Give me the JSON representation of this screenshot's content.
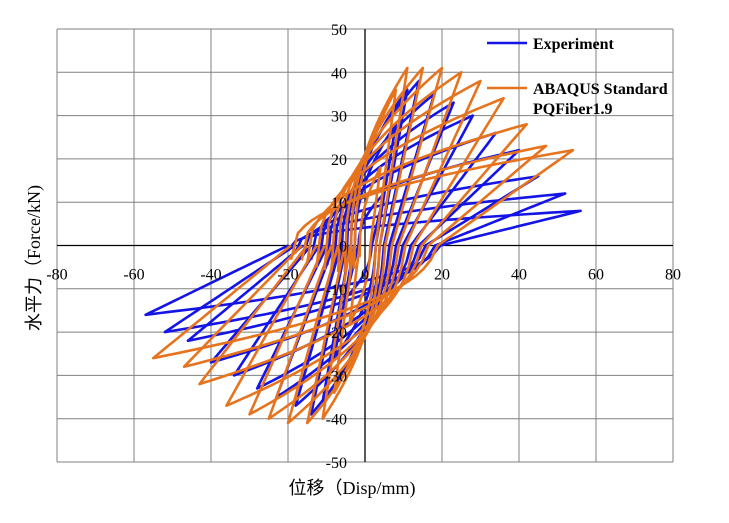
{
  "chart_data": {
    "type": "line",
    "xlabel": "位移（Disp/mm)",
    "ylabel": "水平力（Force/kN)",
    "xlim": [
      -80,
      80
    ],
    "ylim": [
      -50,
      50
    ],
    "xticks": [
      "-80",
      "-60",
      "-40",
      "-20",
      "0",
      "20",
      "40",
      "60",
      "80"
    ],
    "yticks": [
      "50",
      "40",
      "30",
      "20",
      "10",
      "0",
      "-10",
      "-20",
      "-30",
      "-40",
      "-50"
    ],
    "grid": true,
    "legend_position": "top-right",
    "colors": {
      "Experiment": "#1414e6",
      "ABAQUS Standard": "#e6731e"
    },
    "series": [
      {
        "name": "Experiment",
        "loops": [
          {
            "dmax": 5,
            "fmax": 12,
            "dmin": -5,
            "fmin": -12
          },
          {
            "dmax": 8,
            "fmax": 28,
            "dmin": -8,
            "fmin": -26
          },
          {
            "dmax": 11,
            "fmax": 36,
            "dmin": -11,
            "fmin": -36
          },
          {
            "dmax": 14,
            "fmax": 38,
            "dmin": -14,
            "fmin": -39
          },
          {
            "dmax": 18,
            "fmax": 35,
            "dmin": -18,
            "fmin": -37
          },
          {
            "dmax": 23,
            "fmax": 33,
            "dmin": -23,
            "fmin": -35
          },
          {
            "dmax": 28,
            "fmax": 30,
            "dmin": -28,
            "fmin": -33
          },
          {
            "dmax": 34,
            "fmax": 26,
            "dmin": -34,
            "fmin": -30
          },
          {
            "dmax": 40,
            "fmax": 22,
            "dmin": -40,
            "fmin": -27
          },
          {
            "dmax": 45,
            "fmax": 16,
            "dmin": -46,
            "fmin": -22
          },
          {
            "dmax": 52,
            "fmax": 12,
            "dmin": -52,
            "fmin": -20
          },
          {
            "dmax": 56,
            "fmax": 8,
            "dmin": -57,
            "fmin": -16
          }
        ]
      },
      {
        "name": "ABAQUS Standard",
        "loops": [
          {
            "dmax": 4,
            "fmax": 18,
            "dmin": -4,
            "fmin": -18
          },
          {
            "dmax": 8,
            "fmax": 36,
            "dmin": -8,
            "fmin": -34
          },
          {
            "dmax": 11,
            "fmax": 41,
            "dmin": -11,
            "fmin": -40
          },
          {
            "dmax": 15,
            "fmax": 41,
            "dmin": -15,
            "fmin": -41
          },
          {
            "dmax": 20,
            "fmax": 41,
            "dmin": -20,
            "fmin": -41
          },
          {
            "dmax": 25,
            "fmax": 40,
            "dmin": -25,
            "fmin": -40
          },
          {
            "dmax": 30,
            "fmax": 38,
            "dmin": -30,
            "fmin": -39
          },
          {
            "dmax": 36,
            "fmax": 34,
            "dmin": -36,
            "fmin": -37
          },
          {
            "dmax": 42,
            "fmax": 28,
            "dmin": -43,
            "fmin": -32
          },
          {
            "dmax": 47,
            "fmax": 23,
            "dmin": -47,
            "fmin": -28
          },
          {
            "dmax": 54,
            "fmax": 22,
            "dmin": -55,
            "fmin": -26
          }
        ]
      }
    ],
    "legend": [
      {
        "label": "Experiment",
        "series": "Experiment"
      },
      {
        "label": "ABAQUS Standard",
        "series": "ABAQUS Standard"
      },
      {
        "label": "PQFiber1.9",
        "series": null
      }
    ]
  }
}
